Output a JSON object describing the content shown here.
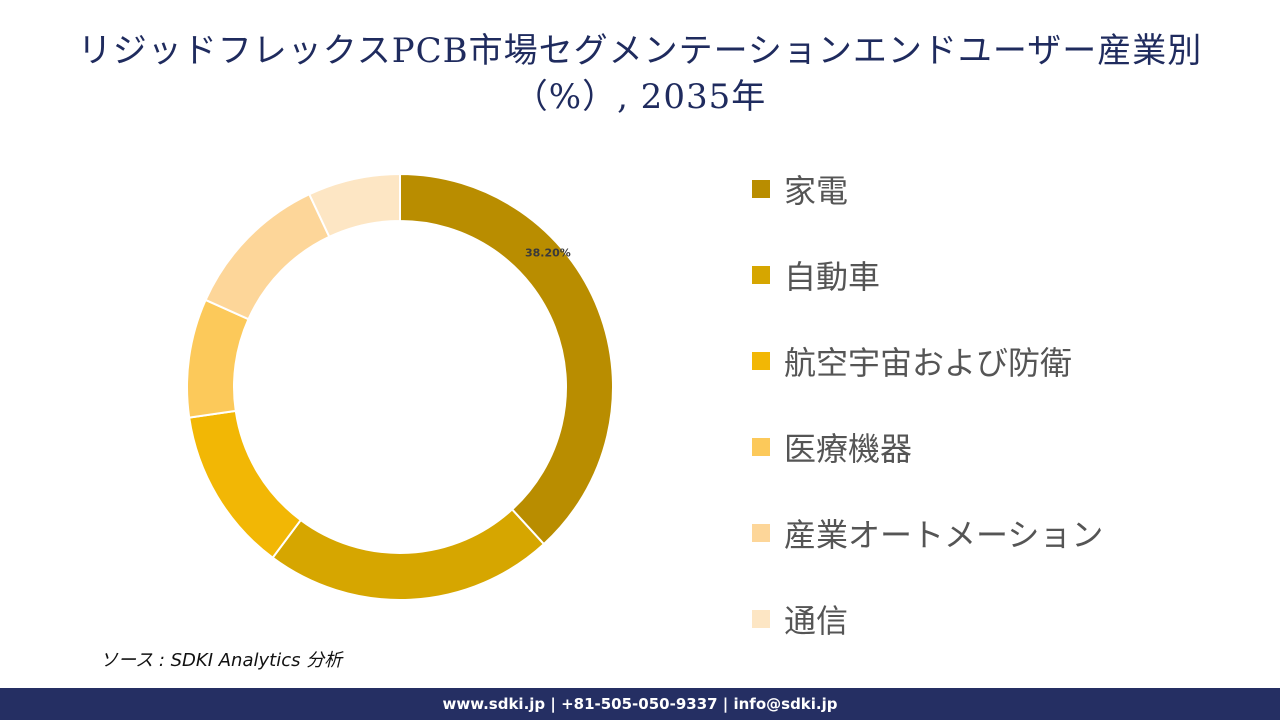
{
  "header": {
    "title": "リジッドフレックスPCB市場セグメンテーションエンドユーザー産業別（%）, 2035年"
  },
  "chart_data": {
    "type": "pie",
    "donut": true,
    "categories": [
      "家電",
      "自動車",
      "航空宇宙および防衛",
      "医療機器",
      "産業オートメーション",
      "通信"
    ],
    "values": [
      38.2,
      22.0,
      12.5,
      9.0,
      11.3,
      7.0
    ],
    "colors": [
      "#b98d00",
      "#d6a600",
      "#f2b705",
      "#fcc95a",
      "#fdd699",
      "#fde6c4"
    ],
    "data_labels": [
      "38.20%",
      "",
      "",
      "",
      "",
      ""
    ],
    "legend_position": "right"
  },
  "source": {
    "text": "ソース : SDKI Analytics 分析"
  },
  "footer": {
    "contact": "www.sdki.jp | +81-505-050-9337 | info@sdki.jp"
  }
}
